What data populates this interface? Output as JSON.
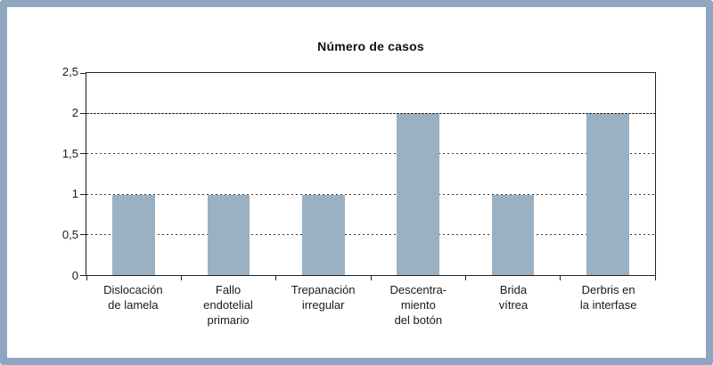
{
  "frame": {
    "color": "#8EA6C0",
    "background": "#ffffff"
  },
  "chart_data": {
    "type": "bar",
    "title": "Número de casos",
    "categories": [
      "Dislocación\nde lamela",
      "Fallo\nendotelial\nprimario",
      "Trepanación\nirregular",
      "Descentra-\nmiento\ndel botón",
      "Brida\nvítrea",
      "Derbris en\nla interfase"
    ],
    "values": [
      1,
      1,
      1,
      2,
      1,
      2
    ],
    "xlabel": "",
    "ylabel": "",
    "ylim": [
      0,
      2.5
    ],
    "yticks": [
      0,
      0.5,
      1,
      1.5,
      2,
      2.5
    ],
    "ytick_labels": [
      "0",
      "0,5",
      "1",
      "1,5",
      "2",
      "2,5"
    ],
    "bar_color": "#9AB0C3",
    "axis_color": "#222222",
    "grid": true,
    "gridline_style": "dotted",
    "legend": false
  }
}
